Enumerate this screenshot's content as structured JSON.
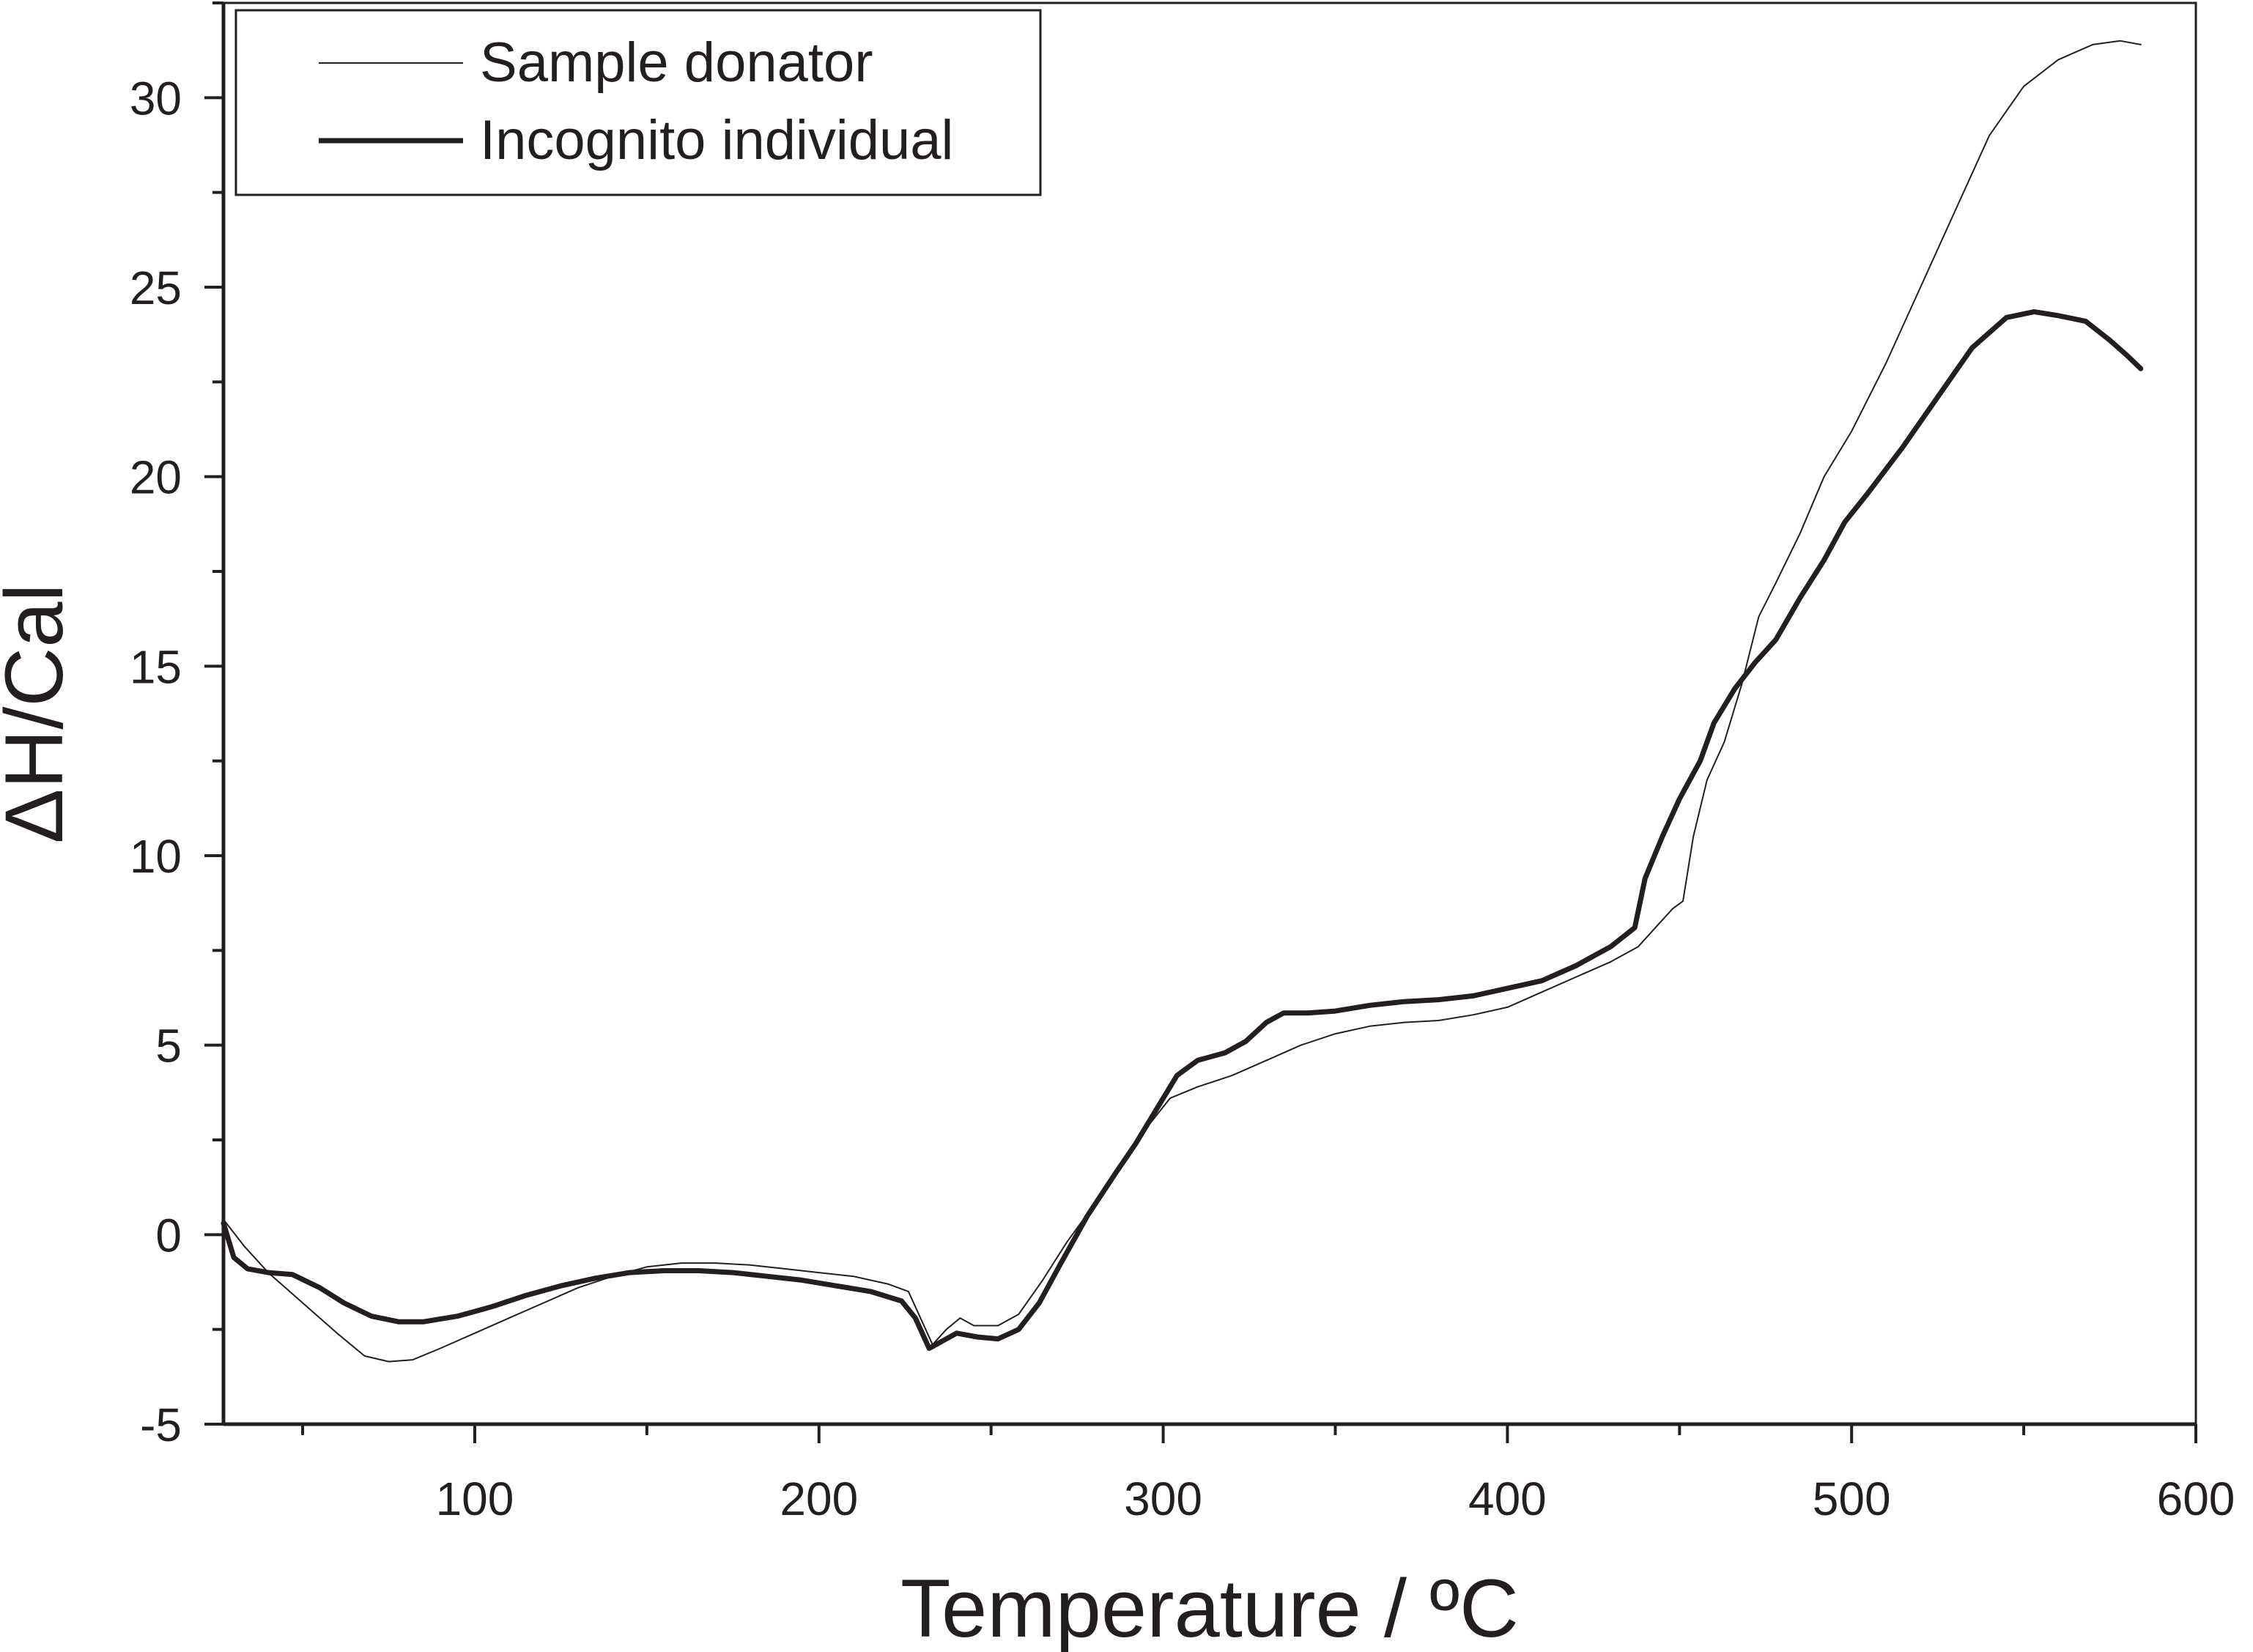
{
  "chart_data": {
    "type": "line",
    "xlabel": "Temperature / ºC",
    "ylabel": "ΔH/Cal",
    "xlim": [
      27,
      600
    ],
    "ylim": [
      -5,
      32.5
    ],
    "xticks": [
      100,
      200,
      300,
      400,
      500,
      600
    ],
    "yticks": [
      -5,
      0,
      5,
      10,
      15,
      20,
      25,
      30
    ],
    "xtick_labels": [
      "100",
      "200",
      "300",
      "400",
      "500",
      "600"
    ],
    "ytick_labels": [
      "-5",
      "0",
      "5",
      "10",
      "15",
      "20",
      "25",
      "30"
    ],
    "grid": false,
    "legend_position": "top-left",
    "series": [
      {
        "name": "Sample donator",
        "style": "thin",
        "color": "#231f20",
        "points": [
          [
            27,
            0.4
          ],
          [
            33,
            -0.3
          ],
          [
            40,
            -1.0
          ],
          [
            50,
            -1.8
          ],
          [
            60,
            -2.6
          ],
          [
            68,
            -3.2
          ],
          [
            75,
            -3.35
          ],
          [
            82,
            -3.3
          ],
          [
            90,
            -3.0
          ],
          [
            100,
            -2.6
          ],
          [
            110,
            -2.2
          ],
          [
            120,
            -1.8
          ],
          [
            130,
            -1.4
          ],
          [
            140,
            -1.1
          ],
          [
            150,
            -0.85
          ],
          [
            160,
            -0.75
          ],
          [
            170,
            -0.75
          ],
          [
            180,
            -0.8
          ],
          [
            190,
            -0.9
          ],
          [
            200,
            -1.0
          ],
          [
            210,
            -1.1
          ],
          [
            220,
            -1.3
          ],
          [
            226,
            -1.5
          ],
          [
            230,
            -2.3
          ],
          [
            233,
            -2.9
          ],
          [
            237,
            -2.5
          ],
          [
            241,
            -2.2
          ],
          [
            245,
            -2.4
          ],
          [
            252,
            -2.4
          ],
          [
            258,
            -2.1
          ],
          [
            265,
            -1.2
          ],
          [
            272,
            -0.2
          ],
          [
            280,
            0.8
          ],
          [
            288,
            1.8
          ],
          [
            295,
            2.8
          ],
          [
            302,
            3.6
          ],
          [
            310,
            3.9
          ],
          [
            320,
            4.2
          ],
          [
            330,
            4.6
          ],
          [
            340,
            5.0
          ],
          [
            350,
            5.3
          ],
          [
            360,
            5.5
          ],
          [
            370,
            5.6
          ],
          [
            380,
            5.65
          ],
          [
            390,
            5.8
          ],
          [
            400,
            6.0
          ],
          [
            410,
            6.4
          ],
          [
            420,
            6.8
          ],
          [
            430,
            7.2
          ],
          [
            438,
            7.6
          ],
          [
            444,
            8.2
          ],
          [
            448,
            8.6
          ],
          [
            451,
            8.8
          ],
          [
            454,
            10.5
          ],
          [
            458,
            12.0
          ],
          [
            463,
            13.0
          ],
          [
            468,
            14.5
          ],
          [
            473,
            16.3
          ],
          [
            478,
            17.2
          ],
          [
            485,
            18.5
          ],
          [
            492,
            20.0
          ],
          [
            500,
            21.2
          ],
          [
            510,
            23.0
          ],
          [
            520,
            25.0
          ],
          [
            530,
            27.0
          ],
          [
            540,
            29.0
          ],
          [
            550,
            30.3
          ],
          [
            560,
            31.0
          ],
          [
            570,
            31.4
          ],
          [
            578,
            31.5
          ],
          [
            584,
            31.4
          ]
        ]
      },
      {
        "name": "Incognito individual",
        "style": "thick",
        "color": "#231f20",
        "points": [
          [
            27,
            0.3
          ],
          [
            30,
            -0.6
          ],
          [
            34,
            -0.9
          ],
          [
            40,
            -1.0
          ],
          [
            47,
            -1.05
          ],
          [
            55,
            -1.4
          ],
          [
            62,
            -1.8
          ],
          [
            70,
            -2.15
          ],
          [
            78,
            -2.3
          ],
          [
            85,
            -2.3
          ],
          [
            95,
            -2.15
          ],
          [
            105,
            -1.9
          ],
          [
            115,
            -1.6
          ],
          [
            125,
            -1.35
          ],
          [
            135,
            -1.15
          ],
          [
            145,
            -1.0
          ],
          [
            155,
            -0.95
          ],
          [
            165,
            -0.95
          ],
          [
            175,
            -1.0
          ],
          [
            185,
            -1.1
          ],
          [
            195,
            -1.2
          ],
          [
            205,
            -1.35
          ],
          [
            215,
            -1.5
          ],
          [
            224,
            -1.75
          ],
          [
            228,
            -2.2
          ],
          [
            232,
            -3.0
          ],
          [
            236,
            -2.8
          ],
          [
            240,
            -2.6
          ],
          [
            246,
            -2.7
          ],
          [
            252,
            -2.75
          ],
          [
            258,
            -2.5
          ],
          [
            264,
            -1.8
          ],
          [
            270,
            -0.8
          ],
          [
            278,
            0.5
          ],
          [
            286,
            1.6
          ],
          [
            292,
            2.4
          ],
          [
            298,
            3.3
          ],
          [
            304,
            4.2
          ],
          [
            310,
            4.6
          ],
          [
            318,
            4.8
          ],
          [
            324,
            5.1
          ],
          [
            330,
            5.6
          ],
          [
            335,
            5.85
          ],
          [
            342,
            5.85
          ],
          [
            350,
            5.9
          ],
          [
            360,
            6.05
          ],
          [
            370,
            6.15
          ],
          [
            380,
            6.2
          ],
          [
            390,
            6.3
          ],
          [
            400,
            6.5
          ],
          [
            410,
            6.7
          ],
          [
            420,
            7.1
          ],
          [
            430,
            7.6
          ],
          [
            437,
            8.1
          ],
          [
            440,
            9.4
          ],
          [
            445,
            10.5
          ],
          [
            450,
            11.5
          ],
          [
            456,
            12.5
          ],
          [
            460,
            13.5
          ],
          [
            466,
            14.4
          ],
          [
            472,
            15.1
          ],
          [
            478,
            15.7
          ],
          [
            485,
            16.8
          ],
          [
            492,
            17.8
          ],
          [
            498,
            18.8
          ],
          [
            505,
            19.6
          ],
          [
            515,
            20.8
          ],
          [
            525,
            22.1
          ],
          [
            535,
            23.4
          ],
          [
            545,
            24.2
          ],
          [
            553,
            24.35
          ],
          [
            560,
            24.25
          ],
          [
            568,
            24.1
          ],
          [
            575,
            23.6
          ],
          [
            580,
            23.2
          ],
          [
            584,
            22.85
          ]
        ]
      }
    ]
  }
}
